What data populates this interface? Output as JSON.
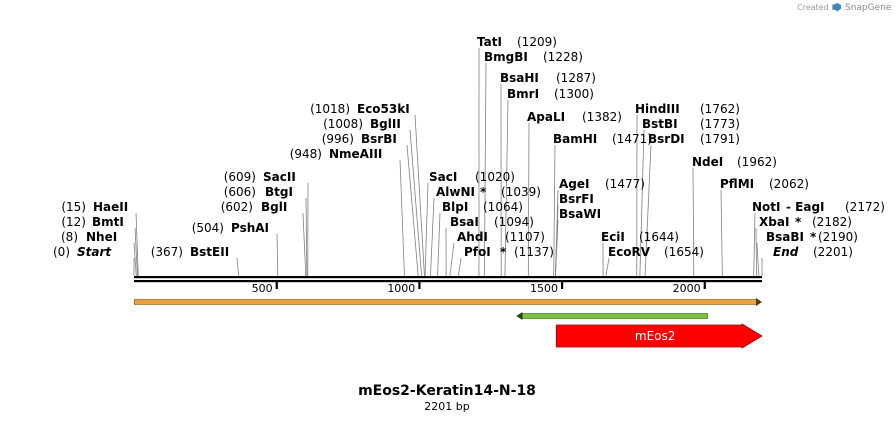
{
  "credit": {
    "created_by": "Created by",
    "brand": "SnapGene"
  },
  "map": {
    "title": "mEos2-Keratin14-N-18",
    "length_label": "2201 bp",
    "total_bp": 2201
  },
  "ticks": [
    {
      "value": 500,
      "label": "500"
    },
    {
      "value": 1000,
      "label": "1000"
    },
    {
      "value": 1500,
      "label": "1500"
    },
    {
      "value": 2000,
      "label": "2000"
    }
  ],
  "features": [
    {
      "name": "",
      "start": 1,
      "end": 2201,
      "direction": "forward",
      "color": "#e8a33c",
      "track": "top"
    },
    {
      "name": "",
      "start": 1340,
      "end": 2010,
      "direction": "reverse",
      "color": "#7cc043",
      "track": "mid"
    },
    {
      "name": "mEos2",
      "start": 1480,
      "end": 2201,
      "direction": "forward",
      "color": "#ff0000",
      "track": "bottom"
    }
  ],
  "sites": [
    {
      "name": "TatI",
      "pos": "(1209)",
      "bp": 1209,
      "star": ""
    },
    {
      "name": "BmgBI",
      "pos": "(1228)",
      "bp": 1228,
      "star": ""
    },
    {
      "name": "BsaHI",
      "pos": "(1287)",
      "bp": 1287,
      "star": ""
    },
    {
      "name": "BmrI",
      "pos": "(1300)",
      "bp": 1300,
      "star": ""
    },
    {
      "name": "ApaLI",
      "pos": "(1382)",
      "bp": 1382,
      "star": ""
    },
    {
      "name": "HindIII",
      "pos": "(1762)",
      "bp": 1762,
      "star": ""
    },
    {
      "name": "BstBI",
      "pos": "(1773)",
      "bp": 1773,
      "star": ""
    },
    {
      "name": "BsrDI",
      "pos": "(1791)",
      "bp": 1791,
      "star": ""
    },
    {
      "name": "BamHI",
      "pos": "(1471)",
      "bp": 1471,
      "star": ""
    },
    {
      "name": "NdeI",
      "pos": "(1962)",
      "bp": 1962,
      "star": ""
    },
    {
      "name": "PflMI",
      "pos": "(2062)",
      "bp": 2062,
      "star": ""
    },
    {
      "name": "Eco53kI",
      "pos": "(1018)",
      "bp": 1018,
      "star": ""
    },
    {
      "name": "BglII",
      "pos": "(1008)",
      "bp": 1008,
      "star": ""
    },
    {
      "name": "BsrBI",
      "pos": "(996)",
      "bp": 996,
      "star": ""
    },
    {
      "name": "NmeAIII",
      "pos": "(948)",
      "bp": 948,
      "star": ""
    },
    {
      "name": "SacI",
      "pos": "(1020)",
      "bp": 1020,
      "star": ""
    },
    {
      "name": "AlwNI",
      "pos": "(1039)",
      "bp": 1039,
      "star": "*"
    },
    {
      "name": "BlpI",
      "pos": "(1064)",
      "bp": 1064,
      "star": ""
    },
    {
      "name": "BsaI",
      "pos": "(1094)",
      "bp": 1094,
      "star": ""
    },
    {
      "name": "AhdI",
      "pos": "(1107)",
      "bp": 1107,
      "star": ""
    },
    {
      "name": "PfoI",
      "pos": "(1137)",
      "bp": 1137,
      "star": "*"
    },
    {
      "name": "AgeI",
      "pos": "(1477)",
      "bp": 1477,
      "star": ""
    },
    {
      "name": "BsrFI",
      "pos": "",
      "bp": 1477,
      "star": ""
    },
    {
      "name": "BsaWI",
      "pos": "",
      "bp": 1477,
      "star": ""
    },
    {
      "name": "EciI",
      "pos": "(1644)",
      "bp": 1644,
      "star": ""
    },
    {
      "name": "EcoRV",
      "pos": "(1654)",
      "bp": 1654,
      "star": ""
    },
    {
      "name": "SacII",
      "pos": "(609)",
      "bp": 609,
      "star": ""
    },
    {
      "name": "BtgI",
      "pos": "(606)",
      "bp": 606,
      "star": ""
    },
    {
      "name": "BglI",
      "pos": "(602)",
      "bp": 602,
      "star": ""
    },
    {
      "name": "PshAI",
      "pos": "(504)",
      "bp": 504,
      "star": ""
    },
    {
      "name": "BstEII",
      "pos": "(367)",
      "bp": 367,
      "star": ""
    },
    {
      "name": "HaeII",
      "pos": "(15)",
      "bp": 15,
      "star": ""
    },
    {
      "name": "BmtI",
      "pos": "(12)",
      "bp": 12,
      "star": ""
    },
    {
      "name": "NheI",
      "pos": "(8)",
      "bp": 8,
      "star": ""
    },
    {
      "name": "Start",
      "pos": "(0)",
      "bp": 0,
      "star": ""
    },
    {
      "name": "NotI",
      "pos": "(2172)",
      "bp": 2172,
      "star": "",
      "extra": " - EagI"
    },
    {
      "name": "XbaI",
      "pos": "(2182)",
      "bp": 2182,
      "star": "*"
    },
    {
      "name": "BsaBI",
      "pos": "(2190)",
      "bp": 2190,
      "star": "*"
    },
    {
      "name": "End",
      "pos": "(2201)",
      "bp": 2201,
      "star": ""
    }
  ]
}
